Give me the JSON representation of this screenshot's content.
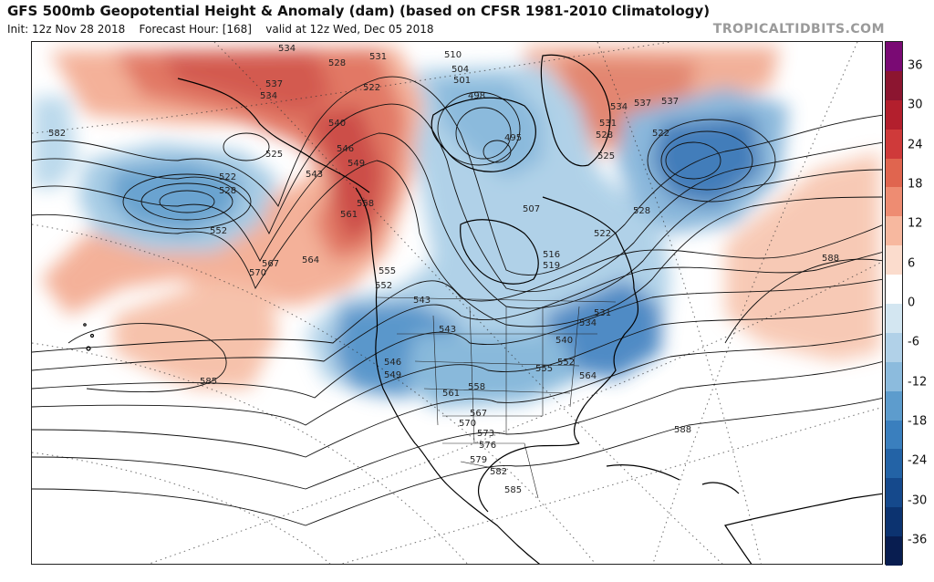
{
  "header": {
    "title": "GFS 500mb Geopotential Height & Anomaly (dam) (based on CFSR 1981-2010 Climatology)",
    "init": "Init: 12z Nov 28 2018",
    "forecast_hour": "Forecast Hour: [168]",
    "valid": "valid at 12z Wed, Dec 05 2018",
    "watermark": "TROPICALTIDBITS.COM"
  },
  "colorbar": {
    "ticks": [
      "36",
      "30",
      "24",
      "18",
      "12",
      "6",
      "0",
      "-6",
      "-12",
      "-18",
      "-24",
      "-30",
      "-36"
    ],
    "colors": [
      "#7a0a74",
      "#8c1530",
      "#b31f2d",
      "#cf3a3a",
      "#e0654f",
      "#ee8c72",
      "#f7b89f",
      "#fbdccd",
      "#ffffff",
      "#d3e6f1",
      "#b1d1e8",
      "#8cbbdd",
      "#5d9ccd",
      "#3a7fbe",
      "#2363a6",
      "#15498c",
      "#0c3370",
      "#081d50"
    ]
  },
  "contour_labels": [
    "582",
    "534",
    "528",
    "531",
    "510",
    "504",
    "501",
    "498",
    "495",
    "537",
    "534",
    "525",
    "522",
    "540",
    "546",
    "549",
    "543",
    "522",
    "528",
    "552",
    "558",
    "561",
    "567",
    "570",
    "564",
    "555",
    "552",
    "543",
    "507",
    "516",
    "519",
    "522",
    "528",
    "531",
    "534",
    "537",
    "546",
    "549",
    "552",
    "540",
    "543",
    "558",
    "561",
    "567",
    "570",
    "573",
    "576",
    "579",
    "582",
    "585",
    "564",
    "588",
    "585",
    "525",
    "522",
    "531",
    "534",
    "528",
    "537",
    "588",
    "555"
  ],
  "legend": {
    "units": "dam"
  }
}
